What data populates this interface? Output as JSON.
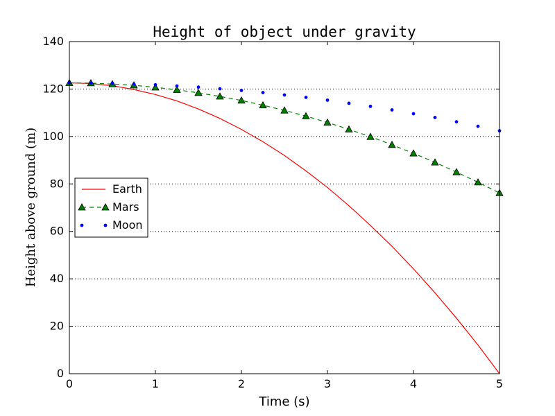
{
  "chart_data": {
    "type": "line",
    "title": "Height of object under gravity",
    "xlabel": "Time (s)",
    "ylabel": "Height above ground (m)",
    "xlim": [
      0,
      5
    ],
    "ylim": [
      0,
      140
    ],
    "xticks": [
      0,
      1,
      2,
      3,
      4,
      5
    ],
    "yticks": [
      0,
      20,
      40,
      60,
      80,
      100,
      120,
      140
    ],
    "grid": "horizontal dotted",
    "legend_position": "center-left",
    "series": [
      {
        "name": "Earth",
        "style": "solid line",
        "color": "#ff0000",
        "x": [
          0,
          0.25,
          0.5,
          0.75,
          1.0,
          1.25,
          1.5,
          1.75,
          2.0,
          2.25,
          2.5,
          2.75,
          3.0,
          3.25,
          3.5,
          3.75,
          4.0,
          4.25,
          4.5,
          4.75,
          5.0
        ],
        "y": [
          122.6,
          122.3,
          121.4,
          119.8,
          117.7,
          115.0,
          111.6,
          107.6,
          103.0,
          97.8,
          92.0,
          85.5,
          78.5,
          70.8,
          62.5,
          53.7,
          44.2,
          34.1,
          23.4,
          12.1,
          0.0
        ]
      },
      {
        "name": "Mars",
        "style": "dashed line with triangle markers",
        "color": "#008000",
        "x": [
          0,
          0.25,
          0.5,
          0.75,
          1.0,
          1.25,
          1.5,
          1.75,
          2.0,
          2.25,
          2.5,
          2.75,
          3.0,
          3.25,
          3.5,
          3.75,
          4.0,
          4.25,
          4.5,
          4.75,
          5.0
        ],
        "y": [
          122.6,
          122.5,
          122.1,
          121.6,
          120.7,
          119.7,
          118.4,
          116.9,
          115.2,
          113.2,
          111.0,
          108.6,
          105.9,
          103.0,
          99.9,
          96.5,
          92.9,
          89.1,
          85.0,
          80.7,
          76.2
        ]
      },
      {
        "name": "Moon",
        "style": "dot markers",
        "color": "#0000ff",
        "x": [
          0,
          0.25,
          0.5,
          0.75,
          1.0,
          1.25,
          1.5,
          1.75,
          2.0,
          2.25,
          2.5,
          2.75,
          3.0,
          3.25,
          3.5,
          3.75,
          4.0,
          4.25,
          4.5,
          4.75,
          5.0
        ],
        "y": [
          122.6,
          122.5,
          122.4,
          122.1,
          121.8,
          121.3,
          120.8,
          120.1,
          119.4,
          118.5,
          117.5,
          116.5,
          115.3,
          114.0,
          112.7,
          111.2,
          109.6,
          108.0,
          106.2,
          104.3,
          102.4
        ]
      }
    ]
  }
}
